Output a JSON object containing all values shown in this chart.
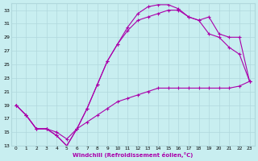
{
  "xlabel": "Windchill (Refroidissement éolien,°C)",
  "bg_color": "#c8eef0",
  "grid_color": "#b0d8dc",
  "line_color": "#aa00aa",
  "xlim": [
    -0.5,
    23.5
  ],
  "ylim": [
    13,
    34
  ],
  "xticks": [
    0,
    1,
    2,
    3,
    4,
    5,
    6,
    7,
    8,
    9,
    10,
    11,
    12,
    13,
    14,
    15,
    16,
    17,
    18,
    19,
    20,
    21,
    22,
    23
  ],
  "yticks": [
    13,
    15,
    17,
    19,
    21,
    23,
    25,
    27,
    29,
    31,
    33
  ],
  "curve_bell_x": [
    0,
    1,
    2,
    3,
    4,
    5,
    6,
    7,
    8,
    9,
    10,
    11,
    12,
    13,
    14,
    15,
    16,
    17,
    18,
    19,
    20,
    21,
    22,
    23
  ],
  "curve_bell_y": [
    19,
    17.5,
    15.5,
    15.5,
    14.5,
    13.0,
    15.5,
    18.5,
    22.0,
    25.5,
    28.0,
    30.5,
    32.5,
    33.5,
    33.8,
    33.8,
    33.2,
    32.0,
    31.5,
    29.5,
    29.0,
    27.5,
    26.5,
    22.5
  ],
  "curve_mid_x": [
    0,
    1,
    2,
    3,
    4,
    5,
    6,
    7,
    8,
    9,
    10,
    11,
    12,
    13,
    14,
    15,
    16,
    17,
    18,
    19,
    20,
    21,
    22,
    23
  ],
  "curve_mid_y": [
    19,
    17.5,
    15.5,
    15.5,
    14.5,
    13.0,
    15.5,
    18.5,
    22.0,
    25.5,
    28.0,
    30.0,
    31.5,
    32.0,
    32.5,
    33.0,
    33.0,
    32.0,
    31.5,
    32.0,
    29.5,
    29.0,
    29.0,
    22.5
  ],
  "curve_diag_x": [
    0,
    1,
    2,
    3,
    4,
    5,
    6,
    7,
    8,
    9,
    10,
    11,
    12,
    13,
    14,
    15,
    16,
    17,
    18,
    19,
    20,
    21,
    22,
    23
  ],
  "curve_diag_y": [
    19.0,
    17.5,
    15.5,
    15.5,
    15.0,
    14.0,
    15.5,
    16.5,
    17.5,
    18.5,
    19.5,
    20.0,
    20.5,
    21.0,
    21.5,
    21.5,
    21.5,
    21.5,
    21.5,
    21.5,
    21.5,
    21.5,
    21.8,
    22.5
  ]
}
